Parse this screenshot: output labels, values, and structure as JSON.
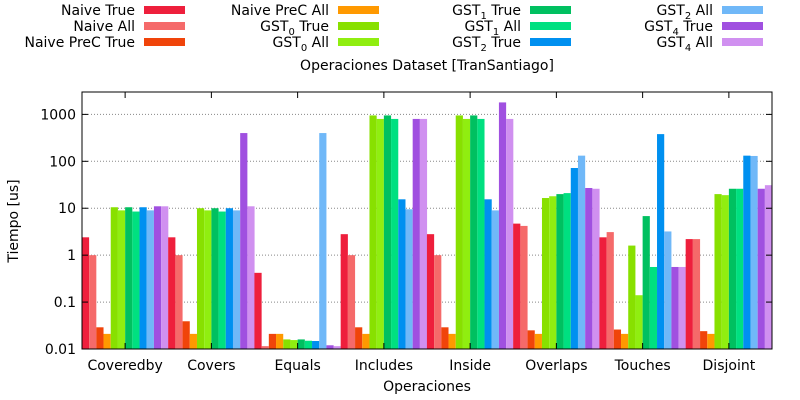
{
  "chart_data": {
    "type": "bar",
    "title": "Operaciones Dataset [TranSantiago]",
    "xlabel": "Operaciones",
    "ylabel": "Tiempo [us]",
    "yscale": "log",
    "ylim": [
      0.01,
      3000
    ],
    "yticks": [
      "0.01",
      "0.1",
      "1",
      "10",
      "100",
      "1000"
    ],
    "grid": "y-dotted",
    "legend_placement": "top",
    "categories": [
      "Coveredby",
      "Covers",
      "Equals",
      "Includes",
      "Inside",
      "Overlaps",
      "Touches",
      "Disjoint"
    ],
    "series": [
      {
        "name": "Naive True",
        "base": "Naive True",
        "sub": "",
        "suffix": "",
        "color": "#ee1f3c",
        "values": [
          2.4,
          2.4,
          0.42,
          2.8,
          2.8,
          4.7,
          2.4,
          2.2
        ]
      },
      {
        "name": "Naive All",
        "base": "Naive All",
        "sub": "",
        "suffix": "",
        "color": "#f56a6a",
        "values": [
          1.0,
          1.0,
          0.0115,
          1.0,
          1.0,
          4.2,
          3.1,
          2.2
        ]
      },
      {
        "name": "Naive PreC True",
        "base": "Naive PreC True",
        "sub": "",
        "suffix": "",
        "color": "#f0440a",
        "values": [
          0.029,
          0.039,
          0.021,
          0.029,
          0.029,
          0.025,
          0.026,
          0.024
        ]
      },
      {
        "name": "Naive PreC All",
        "base": "Naive PreC All",
        "sub": "",
        "suffix": "",
        "color": "#ff9900",
        "values": [
          0.021,
          0.021,
          0.021,
          0.021,
          0.021,
          0.021,
          0.021,
          0.021
        ]
      },
      {
        "name": "GST0 True",
        "base": "GST",
        "sub": "0",
        "suffix": " True",
        "color": "#88e000",
        "values": [
          10.5,
          10.0,
          0.016,
          950,
          950,
          16.5,
          1.6,
          20
        ]
      },
      {
        "name": "GST0 All",
        "base": "GST",
        "sub": "0",
        "suffix": " All",
        "color": "#90ee10",
        "values": [
          9.0,
          9.0,
          0.0155,
          800,
          800,
          18.0,
          0.14,
          19
        ]
      },
      {
        "name": "GST1 True",
        "base": "GST",
        "sub": "1",
        "suffix": " True",
        "color": "#00c060",
        "values": [
          10.5,
          10.0,
          0.016,
          950,
          950,
          20.0,
          6.8,
          26
        ]
      },
      {
        "name": "GST1 All",
        "base": "GST",
        "sub": "1",
        "suffix": " All",
        "color": "#00e080",
        "values": [
          8.5,
          8.5,
          0.015,
          800,
          800,
          21.0,
          0.56,
          26
        ]
      },
      {
        "name": "GST2 True",
        "base": "GST",
        "sub": "2",
        "suffix": " True",
        "color": "#0090f0",
        "values": [
          10.5,
          10.0,
          0.0148,
          15.5,
          15.5,
          72,
          380,
          132
        ]
      },
      {
        "name": "GST2 All",
        "base": "GST",
        "sub": "2",
        "suffix": " All",
        "color": "#70b8f8",
        "values": [
          9.0,
          9.0,
          400,
          9.5,
          9.0,
          132,
          3.2,
          130
        ]
      },
      {
        "name": "GST4 True",
        "base": "GST",
        "sub": "4",
        "suffix": " True",
        "color": "#a050e0",
        "values": [
          11.0,
          400,
          0.012,
          800,
          1800,
          27,
          0.56,
          26
        ]
      },
      {
        "name": "GST4 All",
        "base": "GST",
        "sub": "4",
        "suffix": " All",
        "color": "#d090f0",
        "values": [
          11.0,
          11.0,
          0.0115,
          800,
          800,
          26,
          0.56,
          31
        ]
      }
    ]
  }
}
